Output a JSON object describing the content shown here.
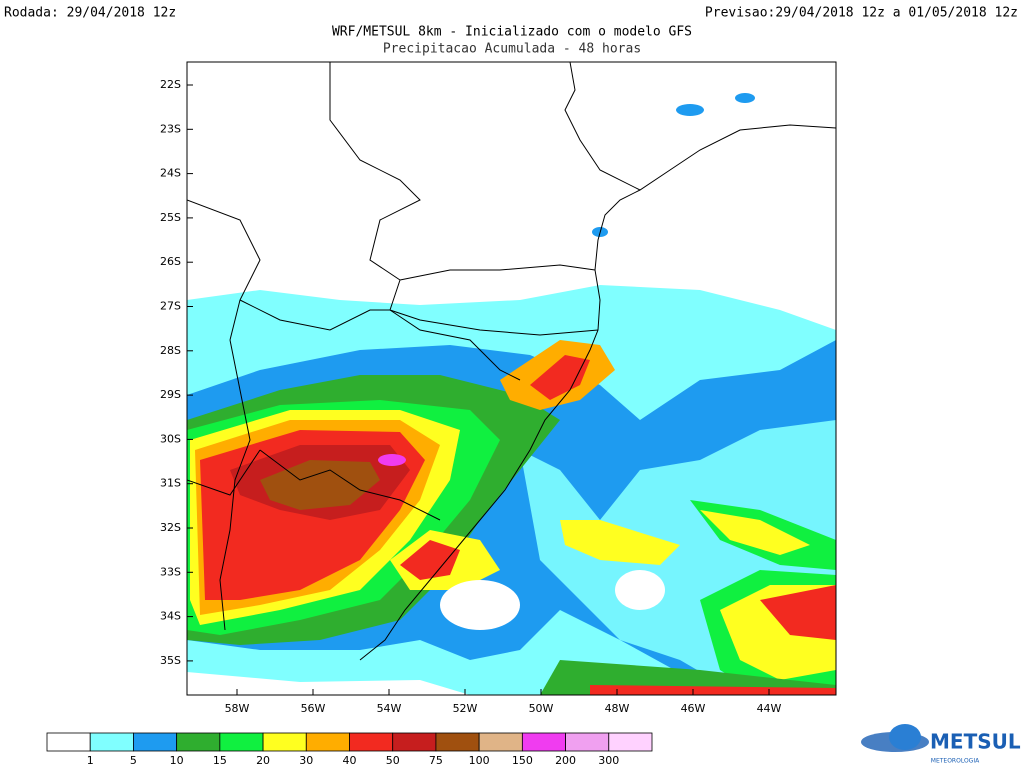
{
  "header": {
    "run": "Rodada: 29/04/2018 12z",
    "forecast": "Previsao:29/04/2018 12z a 01/05/2018 12z",
    "title": "WRF/METSUL 8km - Inicializado com o modelo GFS",
    "subtitle": "Precipitacao Acumulada - 48 horas"
  },
  "map": {
    "lat_labels": [
      "22S",
      "23S",
      "24S",
      "25S",
      "26S",
      "27S",
      "28S",
      "29S",
      "30S",
      "31S",
      "32S",
      "33S",
      "34S",
      "35S"
    ],
    "lon_labels": [
      "58W",
      "56W",
      "54W",
      "52W",
      "50W",
      "48W",
      "46W",
      "44W"
    ]
  },
  "colorbar": {
    "colors": [
      "#ffffff",
      "#80ffff",
      "#1e9bf0",
      "#2fae2f",
      "#10f040",
      "#ffff20",
      "#ffad00",
      "#f22a20",
      "#c61e1e",
      "#a0500f",
      "#e0b487",
      "#f03cf0",
      "#f0a0f0",
      "#ffd2ff"
    ],
    "labels": [
      "1",
      "5",
      "10",
      "15",
      "20",
      "30",
      "40",
      "50",
      "75",
      "100",
      "150",
      "200",
      "300"
    ]
  },
  "logo": {
    "name": "METSUL",
    "tagline": "METEOROLOGIA"
  }
}
